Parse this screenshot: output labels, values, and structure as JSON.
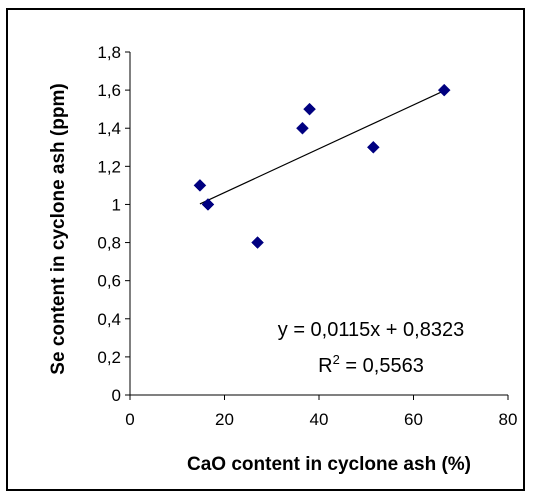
{
  "chart_data": {
    "type": "scatter",
    "title": "",
    "xlabel": "CaO content in cyclone ash (%)",
    "ylabel": "Se content in cyclone ash (ppm)",
    "xlim": [
      0,
      80
    ],
    "ylim": [
      0,
      1.8
    ],
    "x_ticks": [
      0,
      20,
      40,
      60,
      80
    ],
    "x_tick_labels": [
      "0",
      "20",
      "40",
      "60",
      "80"
    ],
    "y_ticks": [
      0,
      0.2,
      0.4,
      0.6,
      0.8,
      1.0,
      1.2,
      1.4,
      1.6,
      1.8
    ],
    "y_tick_labels": [
      "0",
      "0,2",
      "0,4",
      "0,6",
      "0,8",
      "1",
      "1,2",
      "1,4",
      "1,6",
      "1,8"
    ],
    "grid": false,
    "legend": "none",
    "series": [
      {
        "marker": "diamond",
        "color": "#000080",
        "x": [
          14.8,
          16.5,
          27.0,
          36.5,
          38.0,
          51.5,
          66.5
        ],
        "y": [
          1.1,
          1.0,
          0.8,
          1.4,
          1.5,
          1.3,
          1.6
        ]
      }
    ],
    "trendline": {
      "type": "linear",
      "slope": 0.0115,
      "intercept": 0.8323,
      "x_range": [
        14.8,
        66.5
      ],
      "color": "#000000",
      "equation_text": "y = 0,0115x + 0,8323",
      "r2_prefix": "R",
      "r2_sup": "2",
      "r2_suffix": " = 0,5563"
    }
  }
}
